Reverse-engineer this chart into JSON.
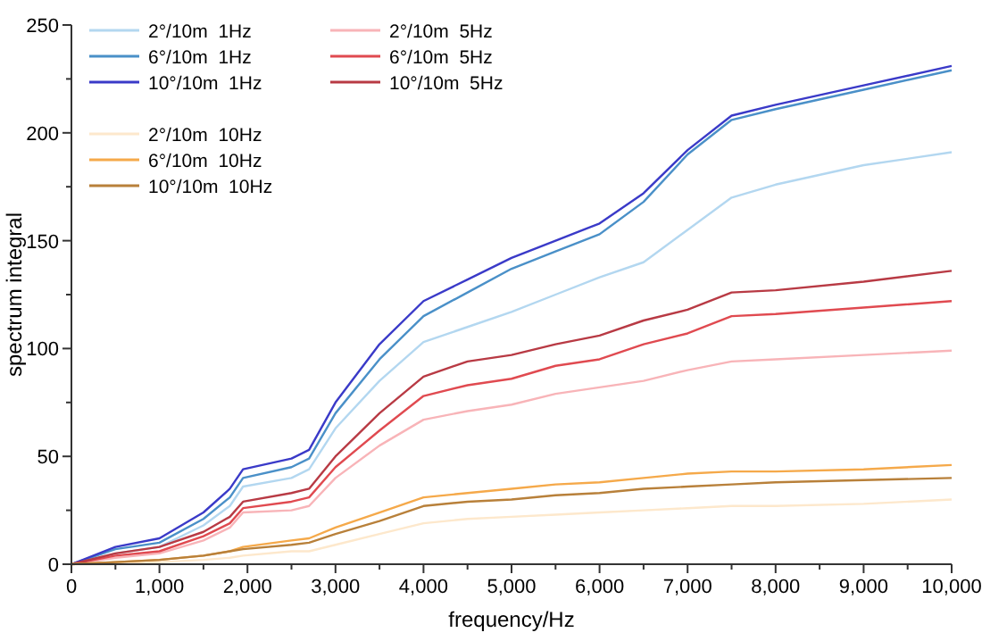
{
  "chart_data": {
    "type": "line",
    "xlabel": "frequency/Hz",
    "ylabel": "spectrum integral",
    "x": [
      0,
      500,
      1000,
      1500,
      1800,
      1950,
      2500,
      2700,
      3000,
      3500,
      4000,
      4500,
      5000,
      5500,
      6000,
      6500,
      7000,
      7500,
      8000,
      9000,
      10000
    ],
    "series": [
      {
        "name": "2°/10m  1Hz",
        "color": "#b3d7f0",
        "values": [
          0,
          5,
          8,
          18,
          27,
          36,
          40,
          44,
          63,
          85,
          103,
          110,
          117,
          125,
          133,
          140,
          155,
          170,
          176,
          185,
          191
        ]
      },
      {
        "name": "6°/10m  1Hz",
        "color": "#4a90c8",
        "values": [
          0,
          7,
          10,
          21,
          31,
          40,
          45,
          49,
          70,
          95,
          115,
          126,
          137,
          145,
          153,
          168,
          190,
          206,
          211,
          220,
          229
        ]
      },
      {
        "name": "10°/10m  1Hz",
        "color": "#3a3ac8",
        "values": [
          0,
          8,
          12,
          24,
          35,
          44,
          49,
          53,
          75,
          102,
          122,
          132,
          142,
          150,
          158,
          172,
          192,
          208,
          213,
          222,
          231
        ]
      },
      {
        "name": "2°/10m  5Hz",
        "color": "#f8b4b8",
        "values": [
          0,
          3,
          5,
          11,
          17,
          24,
          25,
          27,
          40,
          55,
          67,
          71,
          74,
          79,
          82,
          85,
          90,
          94,
          95,
          97,
          99
        ]
      },
      {
        "name": "6°/10m  5Hz",
        "color": "#e04a50",
        "values": [
          0,
          4,
          6,
          13,
          19,
          26,
          29,
          31,
          45,
          62,
          78,
          83,
          86,
          92,
          95,
          102,
          107,
          115,
          116,
          119,
          122
        ]
      },
      {
        "name": "10°/10m  5Hz",
        "color": "#b83a44",
        "values": [
          0,
          5,
          8,
          15,
          22,
          29,
          33,
          35,
          50,
          70,
          87,
          94,
          97,
          102,
          106,
          113,
          118,
          126,
          127,
          131,
          136
        ]
      },
      {
        "name": "2°/10m  10Hz",
        "color": "#fde8cc",
        "values": [
          0,
          0,
          1,
          2,
          3,
          4,
          6,
          6,
          9,
          14,
          19,
          21,
          22,
          23,
          24,
          25,
          26,
          27,
          27,
          28,
          30
        ]
      },
      {
        "name": "6°/10m  10Hz",
        "color": "#f5a94a",
        "values": [
          0,
          1,
          2,
          4,
          6,
          8,
          11,
          12,
          17,
          24,
          31,
          33,
          35,
          37,
          38,
          40,
          42,
          43,
          43,
          44,
          46
        ]
      },
      {
        "name": "10°/10m  10Hz",
        "color": "#b8803a",
        "values": [
          0,
          1,
          2,
          4,
          6,
          7,
          9,
          10,
          14,
          20,
          27,
          29,
          30,
          32,
          33,
          35,
          36,
          37,
          38,
          39,
          40
        ]
      }
    ],
    "xlim": [
      0,
      10000
    ],
    "xticks": [
      {
        "value": 0,
        "label": "0"
      },
      {
        "value": 500,
        "label": null
      },
      {
        "value": 1000,
        "label": "1,000"
      },
      {
        "value": 1500,
        "label": null
      },
      {
        "value": 2000,
        "label": "2,000"
      },
      {
        "value": 2500,
        "label": null
      },
      {
        "value": 3000,
        "label": "3,000"
      },
      {
        "value": 3500,
        "label": null
      },
      {
        "value": 4000,
        "label": "4,000"
      },
      {
        "value": 4500,
        "label": null
      },
      {
        "value": 5000,
        "label": "5,000"
      },
      {
        "value": 5500,
        "label": null
      },
      {
        "value": 6000,
        "label": "6,000"
      },
      {
        "value": 6500,
        "label": null
      },
      {
        "value": 7000,
        "label": "7,000"
      },
      {
        "value": 7500,
        "label": null
      },
      {
        "value": 8000,
        "label": "8,000"
      },
      {
        "value": 8500,
        "label": null
      },
      {
        "value": 9000,
        "label": "9,000"
      },
      {
        "value": 9500,
        "label": null
      },
      {
        "value": 10000,
        "label": "10,000"
      }
    ],
    "ylim": [
      0,
      250
    ],
    "yticks": [
      0,
      {
        "value": 25,
        "label": null
      },
      50,
      {
        "value": 75,
        "label": null
      },
      100,
      {
        "value": 125,
        "label": null
      },
      150,
      {
        "value": 175,
        "label": null
      },
      200,
      {
        "value": 225,
        "label": null
      },
      250
    ],
    "legend": "top left",
    "marker": "none",
    "line_style": "solid",
    "grid": false
  }
}
